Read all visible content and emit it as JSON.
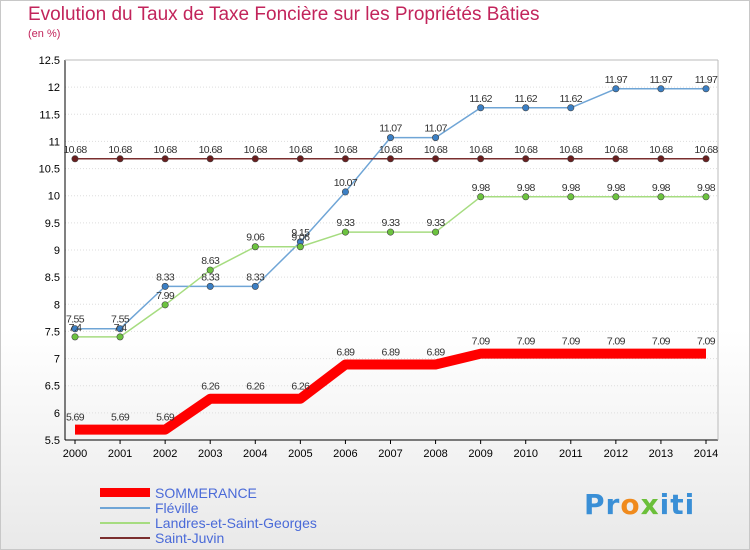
{
  "header": {
    "title": "Evolution du Taux de Taxe Foncière sur les Propriétés Bâties",
    "subtitle": "(en %)"
  },
  "logo": {
    "text": "Proxiti"
  },
  "colors": {
    "title": "#c2245b",
    "legend_text": "#4a6ad8",
    "axis": "#000000",
    "grid": "#dddddd"
  },
  "chart_data": {
    "type": "line",
    "title": "Evolution du Taux de Taxe Foncière sur les Propriétés Bâties",
    "ylabel": "(en %)",
    "xlabel": "",
    "ylim": [
      5.5,
      12.5
    ],
    "yticks": [
      "5.5",
      "6",
      "6.5",
      "7",
      "7.5",
      "8",
      "8.5",
      "9",
      "9.5",
      "10",
      "10.5",
      "11",
      "11.5",
      "12",
      "12.5"
    ],
    "x": [
      "2000",
      "2001",
      "2002",
      "2003",
      "2004",
      "2005",
      "2006",
      "2007",
      "2008",
      "2009",
      "2010",
      "2011",
      "2012",
      "2013",
      "2014"
    ],
    "legend_position": "bottom-left",
    "grid": "horizontal",
    "series": [
      {
        "name": "SOMMERANCE",
        "color": "#ff0000",
        "thick": true,
        "values": [
          5.69,
          5.69,
          5.69,
          6.26,
          6.26,
          6.26,
          6.89,
          6.89,
          6.89,
          7.09,
          7.09,
          7.09,
          7.09,
          7.09,
          7.09
        ],
        "labels": [
          "5.69",
          "5.69",
          "5.69",
          "6.26",
          "6.26",
          "6.26",
          "6.89",
          "6.89",
          "6.89",
          "7.09",
          "7.09",
          "7.09",
          "7.09",
          "7.09",
          "7.09"
        ]
      },
      {
        "name": "Fléville",
        "color": "#6fa5d6",
        "marker": "#3b7fc4",
        "thick": false,
        "values": [
          7.55,
          7.55,
          8.33,
          8.33,
          8.33,
          9.15,
          10.07,
          11.07,
          11.07,
          11.62,
          11.62,
          11.62,
          11.97,
          11.97,
          11.97
        ],
        "labels": [
          "7.55",
          "7.55",
          "8.33",
          "8.33",
          "8.33",
          "9.15",
          "10.07",
          "11.07",
          "11.07",
          "11.62",
          "11.62",
          "11.62",
          "11.97",
          "11.97",
          "11.97"
        ]
      },
      {
        "name": "Landres-et-Saint-Georges",
        "color": "#a6dc80",
        "marker": "#6cc33f",
        "thick": false,
        "values": [
          7.4,
          7.4,
          7.99,
          8.63,
          9.06,
          9.06,
          9.33,
          9.33,
          9.33,
          9.98,
          9.98,
          9.98,
          9.98,
          9.98,
          9.98
        ],
        "labels": [
          "7.4",
          "7.4",
          "7.99",
          "8.63",
          "9.06",
          "9.06",
          "9.33",
          "9.33",
          "9.33",
          "9.98",
          "9.98",
          "9.98",
          "9.98",
          "9.98",
          "9.98"
        ]
      },
      {
        "name": "Saint-Juvin",
        "color": "#7a2e2e",
        "marker": "#6a1f1f",
        "thick": false,
        "values": [
          10.68,
          10.68,
          10.68,
          10.68,
          10.68,
          10.68,
          10.68,
          10.68,
          10.68,
          10.68,
          10.68,
          10.68,
          10.68,
          10.68,
          10.68
        ],
        "labels": [
          "10.68",
          "10.68",
          "10.68",
          "10.68",
          "10.68",
          "10.68",
          "10.68",
          "10.68",
          "10.68",
          "10.68",
          "10.68",
          "10.68",
          "10.68",
          "10.68",
          "10.68"
        ]
      }
    ]
  }
}
